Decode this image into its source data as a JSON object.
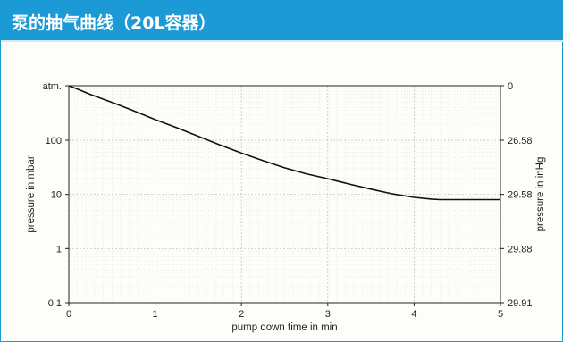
{
  "title": "泵的抽气曲线（20L容器）",
  "colors": {
    "header": "#1b9ad6",
    "curve": "#111111",
    "grid": "#c8c8c8"
  },
  "chart_data": {
    "type": "line",
    "xlabel": "pump down time in min",
    "ylabel_left": "pressure in mbar",
    "ylabel_right": "pressure in inHg",
    "xlim": [
      0,
      5
    ],
    "x_ticks": [
      "0",
      "1",
      "2",
      "3",
      "4",
      "5"
    ],
    "y_scale": "log",
    "ylim": [
      0.1,
      1013
    ],
    "y_ticks_left": [
      {
        "value": 1013,
        "label": "atm."
      },
      {
        "value": 100,
        "label": "100"
      },
      {
        "value": 10,
        "label": "10"
      },
      {
        "value": 1,
        "label": "1"
      },
      {
        "value": 0.1,
        "label": "0.1"
      }
    ],
    "y_ticks_right": [
      {
        "value": 1013,
        "label": "0"
      },
      {
        "value": 100,
        "label": "26.58"
      },
      {
        "value": 10,
        "label": "29.58"
      },
      {
        "value": 1,
        "label": "29.88"
      },
      {
        "value": 0.1,
        "label": "29.91"
      }
    ],
    "grid": true,
    "series": [
      {
        "x": [
          0,
          0.1,
          0.25,
          0.5,
          0.75,
          1.0,
          1.25,
          1.5,
          1.75,
          2.0,
          2.25,
          2.5,
          2.75,
          3.0,
          3.25,
          3.5,
          3.75,
          4.0,
          4.2,
          4.3,
          4.5,
          4.75,
          5.0
        ],
        "y": [
          1013,
          880,
          700,
          500,
          350,
          240,
          170,
          118,
          82,
          58,
          42,
          31,
          24,
          19.5,
          15.5,
          12.5,
          10.2,
          8.8,
          8.2,
          8.0,
          8.0,
          8.0,
          8.0
        ]
      }
    ]
  }
}
